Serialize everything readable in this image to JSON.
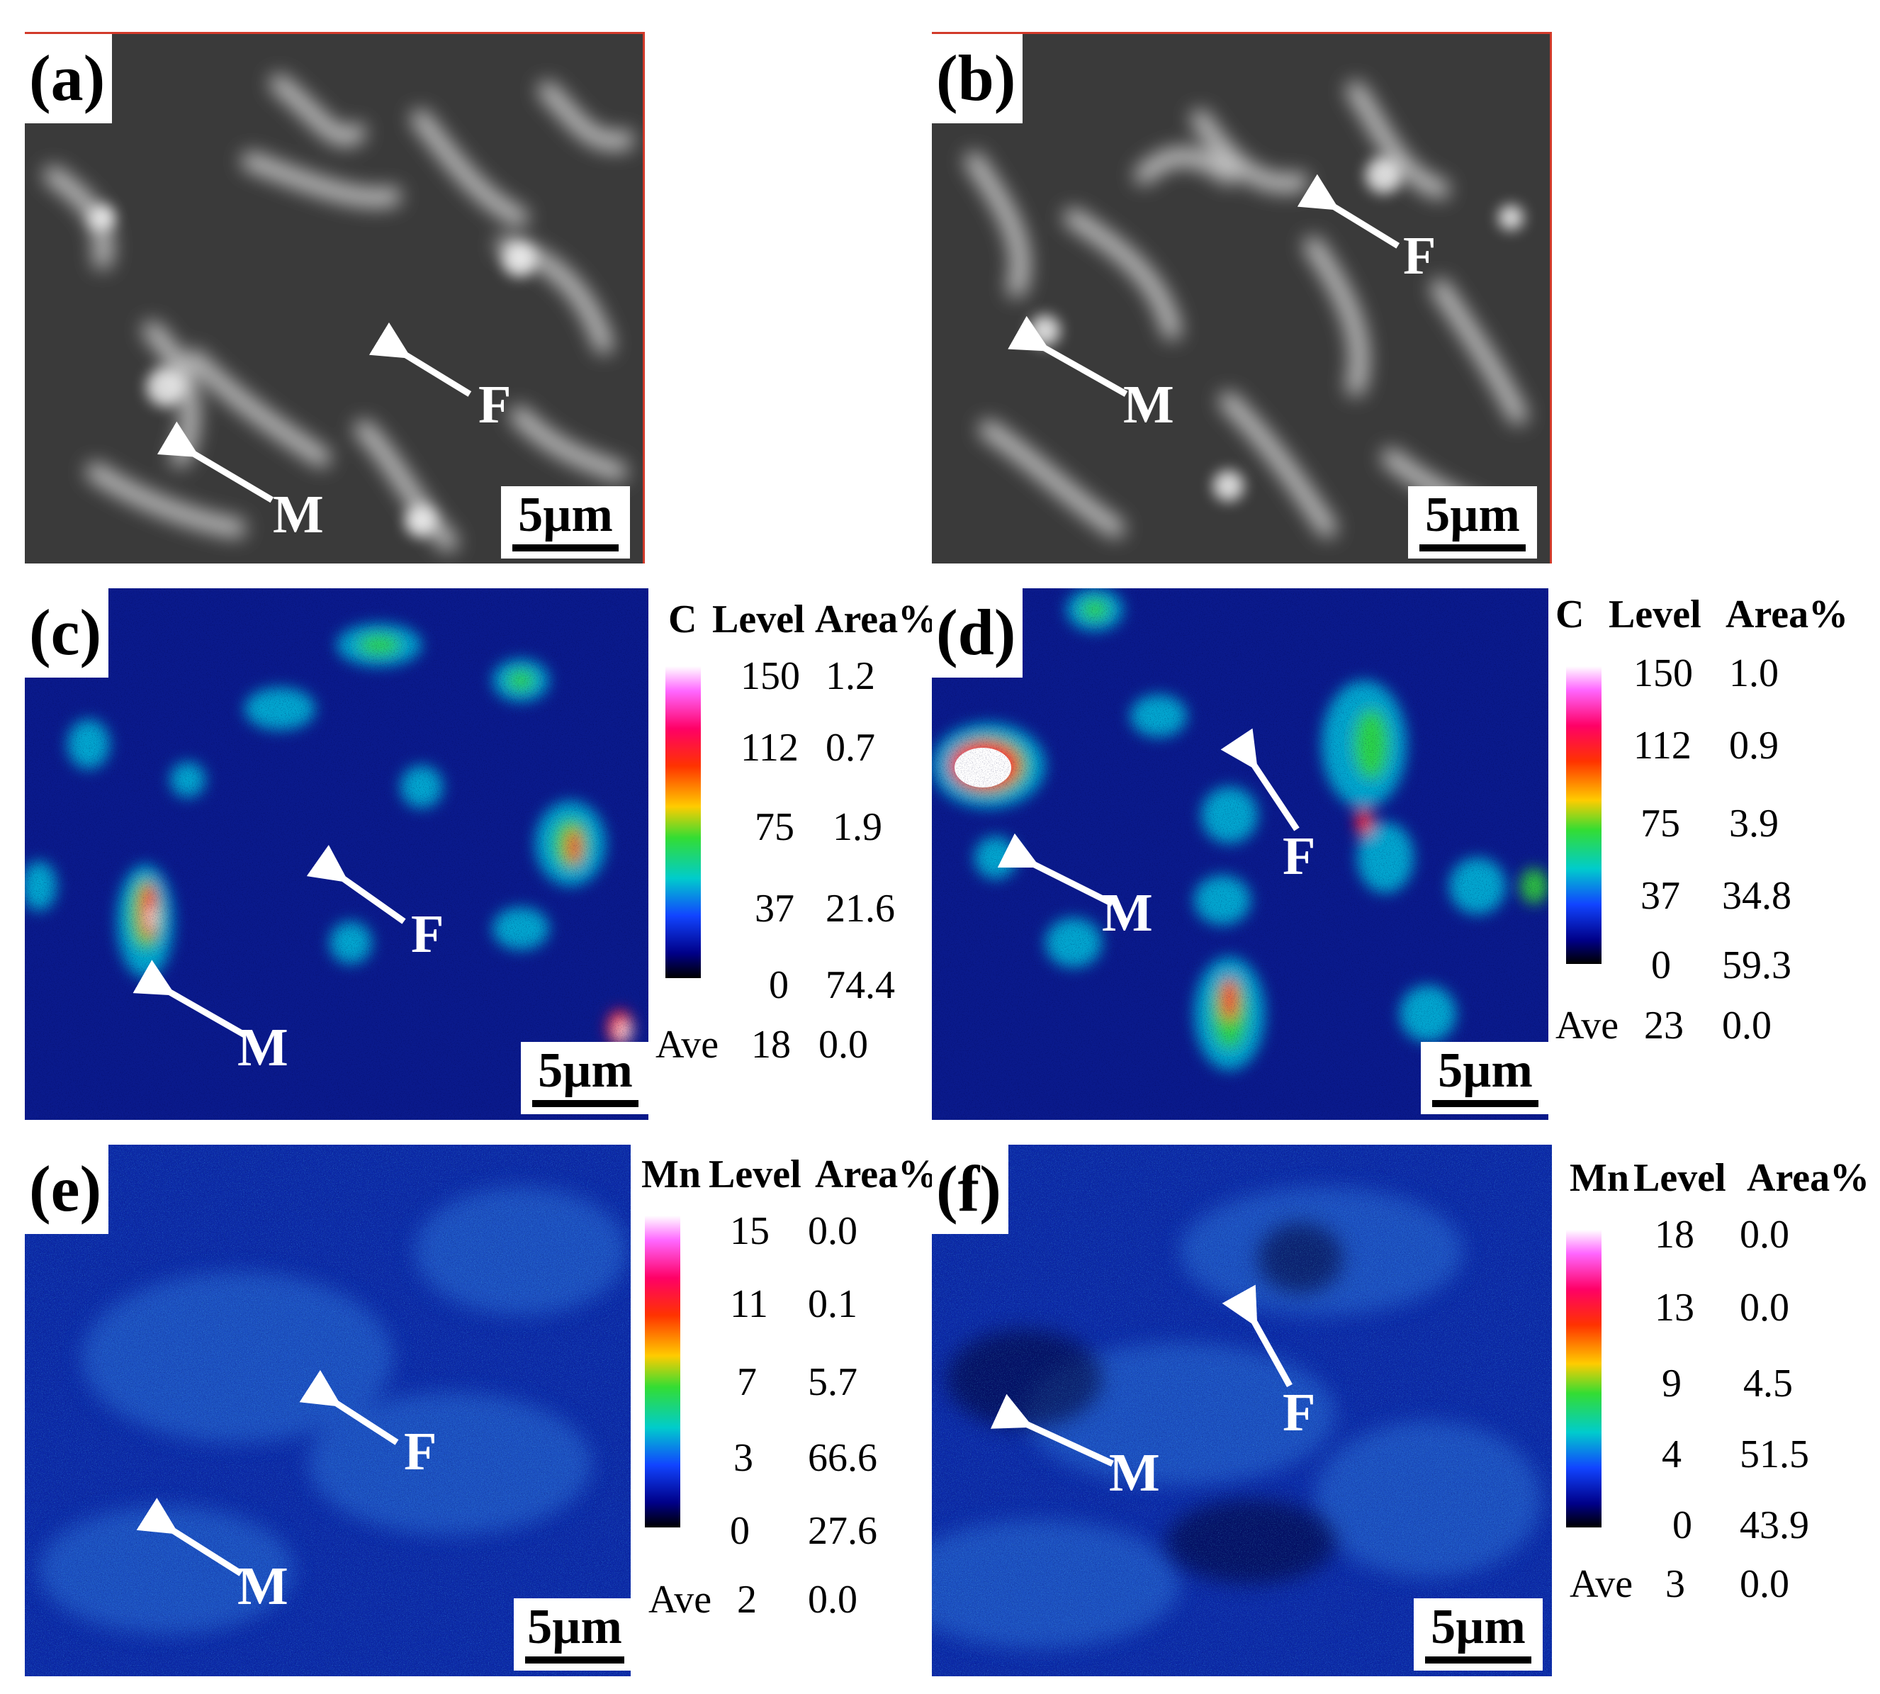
{
  "scale_label": "5µm",
  "panels": {
    "a": {
      "label": "(a)",
      "marker_m": "M",
      "marker_f": "F"
    },
    "b": {
      "label": "(b)",
      "marker_m": "M",
      "marker_f": "F"
    },
    "c": {
      "label": "(c)",
      "marker_m": "M",
      "marker_f": "F"
    },
    "d": {
      "label": "(d)",
      "marker_m": "M",
      "marker_f": "F"
    },
    "e": {
      "label": "(e)",
      "marker_m": "M",
      "marker_f": "F"
    },
    "f": {
      "label": "(f)",
      "marker_m": "M",
      "marker_f": "F"
    }
  },
  "legends": {
    "c": {
      "element": "C",
      "level_header": "Level",
      "area_header": "Area%",
      "rows": [
        {
          "level": "150",
          "area": "1.2"
        },
        {
          "level": "112",
          "area": "0.7"
        },
        {
          "level": "75",
          "area": "1.9"
        },
        {
          "level": "37",
          "area": "21.6"
        },
        {
          "level": "0",
          "area": "74.4"
        }
      ],
      "ave_label": "Ave",
      "ave_level": "18",
      "ave_area": "0.0"
    },
    "d": {
      "element": "C",
      "level_header": "Level",
      "area_header": "Area%",
      "rows": [
        {
          "level": "150",
          "area": "1.0"
        },
        {
          "level": "112",
          "area": "0.9"
        },
        {
          "level": "75",
          "area": "3.9"
        },
        {
          "level": "37",
          "area": "34.8"
        },
        {
          "level": "0",
          "area": "59.3"
        }
      ],
      "ave_label": "Ave",
      "ave_level": "23",
      "ave_area": "0.0"
    },
    "e": {
      "element": "Mn",
      "level_header": "Level",
      "area_header": "Area%",
      "rows": [
        {
          "level": "15",
          "area": "0.0"
        },
        {
          "level": "11",
          "area": "0.1"
        },
        {
          "level": "7",
          "area": "5.7"
        },
        {
          "level": "3",
          "area": "66.6"
        },
        {
          "level": "0",
          "area": "27.6"
        }
      ],
      "ave_label": "Ave",
      "ave_level": "2",
      "ave_area": "0.0"
    },
    "f": {
      "element": "Mn",
      "level_header": "Level",
      "area_header": "Area%",
      "rows": [
        {
          "level": "18",
          "area": "0.0"
        },
        {
          "level": "13",
          "area": "0.0"
        },
        {
          "level": "9",
          "area": "4.5"
        },
        {
          "level": "4",
          "area": "51.5"
        },
        {
          "level": "0",
          "area": "43.9"
        }
      ],
      "ave_label": "Ave",
      "ave_level": "3",
      "ave_area": "0.0"
    }
  },
  "colors": {
    "sem_background": "#3a3a3a",
    "map_background": "#0a1a8c",
    "arrow": "#ffffff",
    "sem_border": "#d23a2a"
  }
}
